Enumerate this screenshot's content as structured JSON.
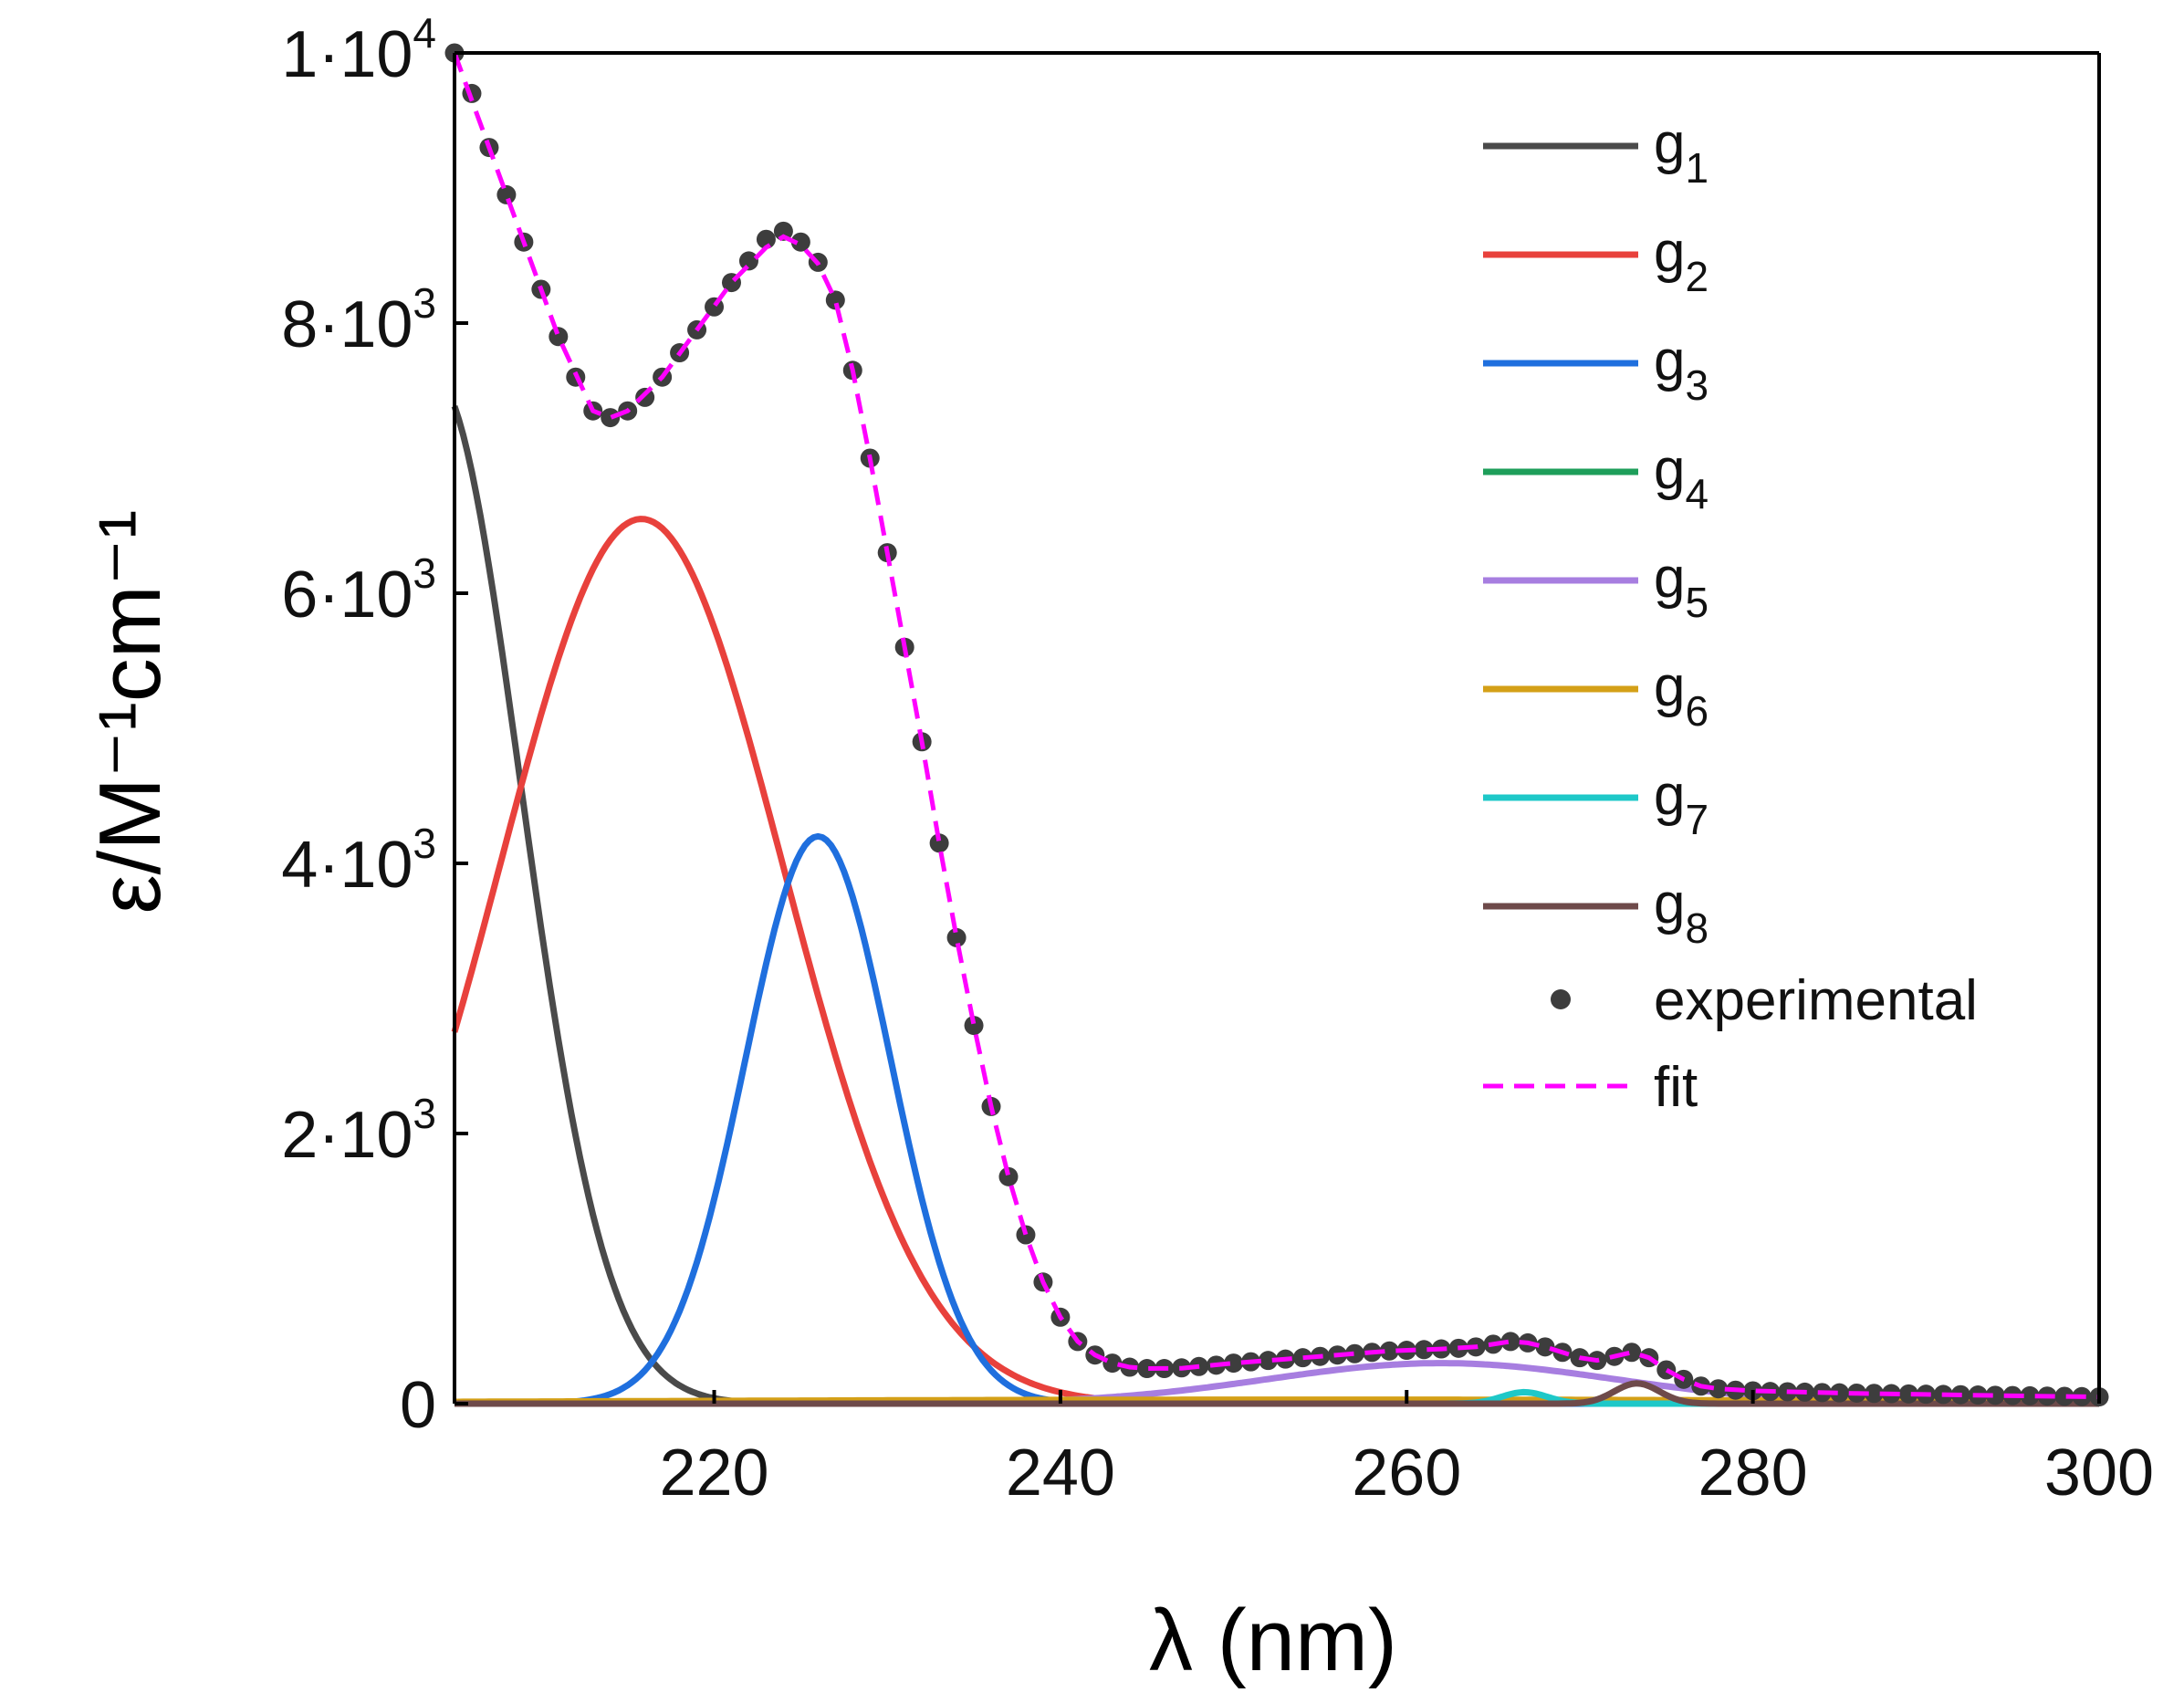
{
  "chart_data": {
    "type": "line",
    "title": "",
    "xlabel": "λ (nm)",
    "ylabel": "ε/M⁻¹cm⁻¹",
    "xlim": [
      205,
      300
    ],
    "ylim": [
      0,
      10000
    ],
    "grid": false,
    "legend_position": "top-right",
    "x_ticks": [
      220,
      240,
      260,
      280,
      300
    ],
    "x_tick_labels": [
      "220",
      "240",
      "260",
      "280",
      "300"
    ],
    "y_ticks": [
      0,
      2000,
      4000,
      6000,
      8000,
      10000
    ],
    "y_tick_labels": [
      {
        "mantissa": "0",
        "exponent": ""
      },
      {
        "mantissa": "2·10",
        "exponent": "3"
      },
      {
        "mantissa": "4·10",
        "exponent": "3"
      },
      {
        "mantissa": "6·10",
        "exponent": "3"
      },
      {
        "mantissa": "8·10",
        "exponent": "3"
      },
      {
        "mantissa": "1·10",
        "exponent": "4"
      }
    ],
    "components": [
      {
        "name": "g",
        "index": "1",
        "color": "#4a4a4a",
        "center": 203.8,
        "amplitude": 7600,
        "sigma": 5.0
      },
      {
        "name": "g",
        "index": "2",
        "color": "#e8413c",
        "center": 215.8,
        "amplitude": 6550,
        "sigma": 8.2
      },
      {
        "name": "g",
        "index": "3",
        "color": "#1f6fde",
        "center": 226.0,
        "amplitude": 4200,
        "sigma": 4.2
      },
      {
        "name": "g",
        "index": "4",
        "color": "#1e9e5a",
        "center": 265.0,
        "amplitude": 20,
        "sigma": 3.0
      },
      {
        "name": "g",
        "index": "5",
        "color": "#a77ee0",
        "center": 262.0,
        "amplitude": 300,
        "sigma": 10.0
      },
      {
        "name": "g",
        "index": "6",
        "color": "#d4a017",
        "center": 255.0,
        "amplitude": 30,
        "sigma": 40.0
      },
      {
        "name": "g",
        "index": "7",
        "color": "#1ec8c8",
        "center": 266.8,
        "amplitude": 85,
        "sigma": 1.3
      },
      {
        "name": "g",
        "index": "8",
        "color": "#6e4a4a",
        "center": 273.3,
        "amplitude": 150,
        "sigma": 1.3
      }
    ],
    "experimental": {
      "name": "experimental",
      "color": "#3d3d3d",
      "x": [
        205,
        206,
        207,
        208,
        209,
        210,
        211,
        212,
        213,
        214,
        215,
        216,
        217,
        218,
        219,
        220,
        221,
        222,
        223,
        224,
        225,
        226,
        227,
        228,
        229,
        230,
        231,
        232,
        233,
        234,
        235,
        236,
        237,
        238,
        239,
        240,
        241,
        242,
        243,
        244,
        245,
        246,
        247,
        248,
        249,
        250,
        251,
        252,
        253,
        254,
        255,
        256,
        257,
        258,
        259,
        260,
        261,
        262,
        263,
        264,
        265,
        266,
        267,
        268,
        269,
        270,
        271,
        272,
        273,
        274,
        275,
        276,
        277,
        278,
        279,
        280,
        281,
        282,
        283,
        284,
        285,
        286,
        287,
        288,
        289,
        290,
        291,
        292,
        293,
        294,
        295,
        296,
        297,
        298,
        299,
        300
      ],
      "y": [
        10000,
        9700,
        9300,
        8950,
        8600,
        8250,
        7900,
        7600,
        7350,
        7300,
        7350,
        7450,
        7600,
        7780,
        7950,
        8120,
        8300,
        8460,
        8620,
        8680,
        8600,
        8450,
        8170,
        7650,
        7000,
        6300,
        5600,
        4900,
        4150,
        3450,
        2800,
        2200,
        1680,
        1250,
        900,
        640,
        460,
        360,
        300,
        270,
        260,
        260,
        265,
        275,
        285,
        300,
        310,
        320,
        330,
        340,
        350,
        360,
        370,
        380,
        390,
        395,
        400,
        405,
        410,
        420,
        440,
        460,
        450,
        420,
        380,
        340,
        320,
        350,
        380,
        340,
        250,
        180,
        130,
        110,
        100,
        95,
        90,
        88,
        85,
        82,
        80,
        78,
        76,
        74,
        72,
        70,
        68,
        66,
        64,
        62,
        60,
        58,
        56,
        54,
        52,
        50
      ]
    },
    "fit": {
      "name": "fit",
      "color": "#ff00ff",
      "x": [
        205,
        207,
        209,
        211,
        213,
        214,
        215,
        217,
        219,
        221,
        223,
        224,
        225,
        226,
        227,
        228,
        229,
        230,
        231,
        232,
        233,
        234,
        235,
        236,
        237,
        238,
        239,
        240,
        241,
        242,
        243,
        244,
        245,
        247,
        250,
        253,
        256,
        259,
        262,
        264,
        266,
        267,
        268,
        270,
        271,
        272,
        273,
        274,
        275,
        276,
        277,
        278,
        280,
        283,
        286,
        290,
        295,
        300
      ],
      "y": [
        10000,
        9300,
        8600,
        7900,
        7350,
        7300,
        7350,
        7600,
        7950,
        8300,
        8560,
        8640,
        8580,
        8440,
        8170,
        7650,
        7000,
        6300,
        5600,
        4900,
        4150,
        3450,
        2800,
        2200,
        1680,
        1250,
        900,
        640,
        460,
        360,
        300,
        270,
        260,
        262,
        300,
        330,
        360,
        390,
        405,
        420,
        460,
        450,
        420,
        340,
        320,
        350,
        380,
        340,
        250,
        180,
        130,
        110,
        95,
        85,
        76,
        68,
        58,
        50
      ]
    }
  },
  "legend": {
    "experimental_label": "experimental",
    "fit_label": "fit"
  }
}
